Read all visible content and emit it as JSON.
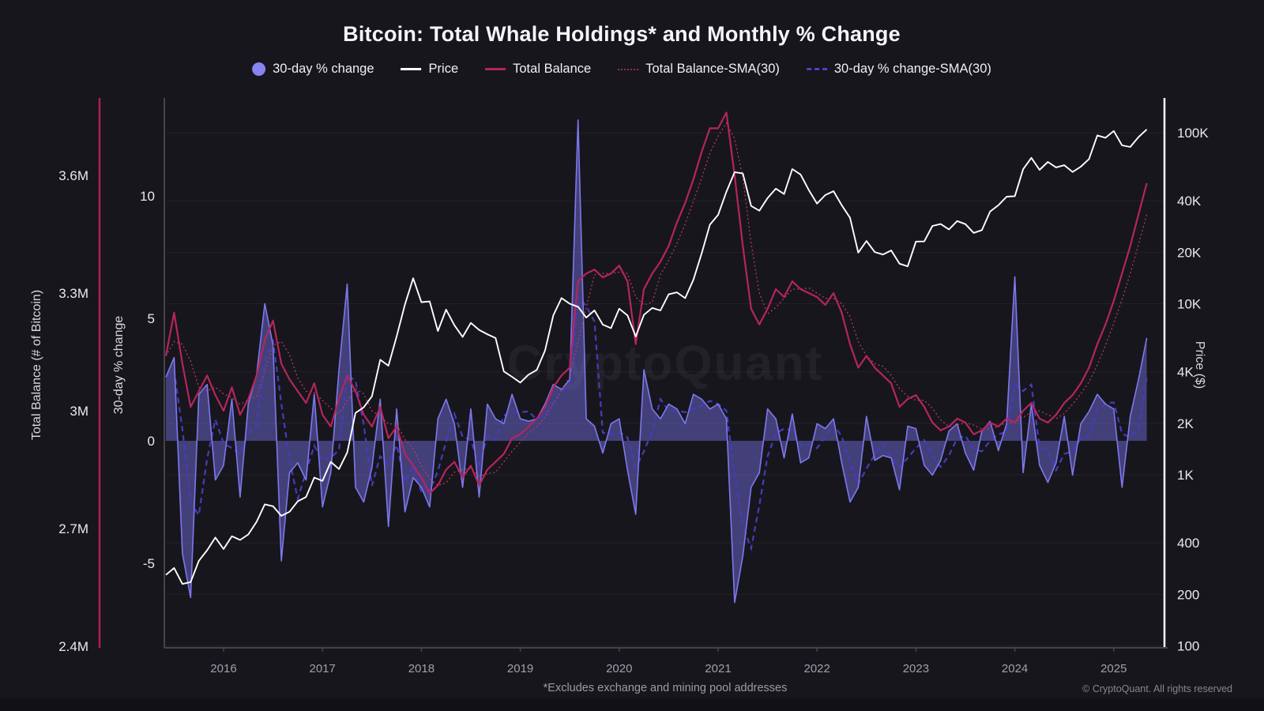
{
  "header": {
    "title": "Bitcoin: Total Whale Holdings* and Monthly % Change"
  },
  "legend": {
    "items": [
      {
        "label": "30-day % change",
        "swatch": "dot",
        "color": "#8783f0"
      },
      {
        "label": "Price",
        "swatch": "line",
        "color": "#ffffff"
      },
      {
        "label": "Total Balance",
        "swatch": "line",
        "color": "#b5255d"
      },
      {
        "label": "Total Balance-SMA(30)",
        "swatch": "dotted",
        "color": "#8e3658"
      },
      {
        "label": "30-day % change-SMA(30)",
        "swatch": "dashed",
        "color": "#4c43c8"
      }
    ]
  },
  "footer": {
    "footnote": "*Excludes exchange and mining pool addresses",
    "copyright": "© CryptoQuant. All rights reserved"
  },
  "watermark_text": "CryptoQuant",
  "chart_data": {
    "type": "line",
    "background": "#17161c",
    "grid": "horizontal, at price-axis ticks, color rgba(255,255,255,0.055)",
    "x_axis": {
      "start": 2015.417,
      "end": 2025.417,
      "step_years": 0.0833333,
      "year_ticks": [
        "2016",
        "2017",
        "2018",
        "2019",
        "2020",
        "2021",
        "2022",
        "2023",
        "2024",
        "2025"
      ]
    },
    "left_axis_balance": {
      "label": "Total Balance (# of Bitcoin)",
      "unit": "M BTC",
      "range_m": [
        2.4,
        3.8
      ],
      "ticks": [
        {
          "label": "3.6M",
          "value": 3.6
        },
        {
          "label": "3.3M",
          "value": 3.3
        },
        {
          "label": "3M",
          "value": 3.0
        },
        {
          "label": "2.7M",
          "value": 2.7
        },
        {
          "label": "2.4M",
          "value": 2.4
        }
      ],
      "axis_color": "#b01e56"
    },
    "left_axis_pct": {
      "label": "30-day % change",
      "range": [
        -9.5,
        14
      ],
      "ticks": [
        {
          "label": "10",
          "value": 10
        },
        {
          "label": "5",
          "value": 5
        },
        {
          "label": "0",
          "value": 0
        },
        {
          "label": "-5",
          "value": -5
        }
      ],
      "axis_color": "#45444c"
    },
    "right_axis_price": {
      "label": "Price ($)",
      "scale": "log10",
      "range": [
        100,
        130000
      ],
      "ticks": [
        {
          "label": "100K",
          "value": 100000
        },
        {
          "label": "40K",
          "value": 40000
        },
        {
          "label": "20K",
          "value": 20000
        },
        {
          "label": "10K",
          "value": 10000
        },
        {
          "label": "4K",
          "value": 4000
        },
        {
          "label": "2K",
          "value": 2000
        },
        {
          "label": "1K",
          "value": 1000
        },
        {
          "label": "400",
          "value": 400
        },
        {
          "label": "200",
          "value": 200
        },
        {
          "label": "100",
          "value": 100
        }
      ],
      "axis_color": "#ffffff"
    },
    "series": [
      {
        "name": "Price",
        "axis": "price",
        "style": {
          "color": "#ffffff",
          "width": 1.9
        },
        "values": [
          260,
          285,
          230,
          236,
          314,
          362,
          430,
          368,
          437,
          416,
          448,
          531,
          672,
          655,
          575,
          608,
          700,
          742,
          963,
          921,
          1190,
          1080,
          1350,
          2300,
          2480,
          2875,
          4703,
          4340,
          6450,
          9900,
          14100,
          10220,
          10310,
          6930,
          9240,
          7490,
          6400,
          7730,
          7030,
          6630,
          6300,
          4020,
          3740,
          3460,
          3850,
          4100,
          5320,
          8560,
          10800,
          10000,
          9600,
          8300,
          9150,
          7550,
          7200,
          9350,
          8550,
          6440,
          8620,
          9450,
          9140,
          11350,
          11650,
          10780,
          13800,
          19700,
          29000,
          33100,
          45200,
          58800,
          57750,
          37300,
          35000,
          41500,
          47100,
          43800,
          61300,
          57000,
          46200,
          38500,
          43200,
          45500,
          37650,
          31800,
          19900,
          23300,
          20050,
          19400,
          20500,
          17150,
          16550,
          23100,
          23150,
          28500,
          29250,
          27200,
          30450,
          29200,
          25950,
          26950,
          34650,
          37700,
          42250,
          42550,
          61200,
          71300,
          60650,
          67500,
          62700,
          64600,
          58950,
          63300,
          70200,
          96400,
          93400,
          102400,
          84350,
          82550,
          94200,
          104600
        ]
      },
      {
        "name": "Total Balance",
        "axis": "balance",
        "style": {
          "color": "#b5255d",
          "width": 2.2
        },
        "values_millions": [
          3.14,
          3.25,
          3.12,
          3.01,
          3.05,
          3.09,
          3.04,
          3.0,
          3.06,
          2.99,
          3.03,
          3.09,
          3.18,
          3.23,
          3.12,
          3.08,
          3.05,
          3.02,
          3.07,
          2.99,
          2.96,
          3.03,
          3.09,
          3.05,
          2.99,
          2.96,
          3.01,
          2.93,
          2.96,
          2.89,
          2.86,
          2.83,
          2.79,
          2.81,
          2.85,
          2.87,
          2.83,
          2.86,
          2.81,
          2.85,
          2.87,
          2.89,
          2.93,
          2.94,
          2.96,
          2.98,
          3.01,
          3.06,
          3.09,
          3.11,
          3.33,
          3.35,
          3.36,
          3.34,
          3.35,
          3.37,
          3.33,
          3.17,
          3.31,
          3.35,
          3.38,
          3.42,
          3.48,
          3.53,
          3.59,
          3.66,
          3.72,
          3.72,
          3.76,
          3.6,
          3.42,
          3.26,
          3.22,
          3.26,
          3.31,
          3.29,
          3.33,
          3.31,
          3.3,
          3.29,
          3.27,
          3.3,
          3.25,
          3.17,
          3.11,
          3.14,
          3.11,
          3.09,
          3.07,
          3.01,
          3.03,
          3.04,
          3.01,
          2.97,
          2.95,
          2.96,
          2.98,
          2.97,
          2.94,
          2.95,
          2.97,
          2.96,
          2.98,
          2.97,
          3.0,
          3.02,
          2.98,
          2.97,
          2.99,
          3.02,
          3.04,
          3.07,
          3.11,
          3.17,
          3.22,
          3.28,
          3.35,
          3.42,
          3.5,
          3.58
        ]
      },
      {
        "name": "30-day % change",
        "axis": "pct",
        "style": {
          "color": "#7d78ee",
          "width": 1.6,
          "fill": "rgba(123,116,234,0.45)",
          "area_baseline": 0
        },
        "values": [
          2.6,
          3.4,
          -4.6,
          -6.4,
          1.9,
          2.3,
          -1.6,
          -1.0,
          1.7,
          -2.3,
          1.5,
          2.7,
          5.6,
          3.9,
          -4.9,
          -1.3,
          -0.9,
          -1.6,
          1.9,
          -2.7,
          -1.3,
          2.9,
          6.4,
          -1.9,
          -2.5,
          -1.1,
          1.7,
          -3.5,
          1.3,
          -2.9,
          -1.5,
          -1.9,
          -2.7,
          0.9,
          1.7,
          0.7,
          -1.9,
          1.3,
          -2.3,
          1.5,
          0.9,
          0.7,
          1.9,
          0.9,
          0.8,
          0.9,
          1.5,
          2.3,
          2.1,
          2.5,
          13.1,
          0.9,
          0.6,
          -0.5,
          0.7,
          0.9,
          -1.2,
          -3.0,
          2.9,
          1.3,
          0.9,
          1.5,
          1.3,
          0.7,
          1.9,
          1.7,
          1.3,
          1.5,
          0.9,
          -6.6,
          -4.7,
          -1.9,
          -1.3,
          1.3,
          0.9,
          -0.7,
          1.1,
          -0.9,
          -0.7,
          0.7,
          0.5,
          0.9,
          -0.9,
          -2.5,
          -1.9,
          1.0,
          -0.8,
          -0.6,
          -0.7,
          -2.0,
          0.6,
          0.5,
          -1.0,
          -1.4,
          -0.8,
          0.4,
          0.7,
          -0.5,
          -1.2,
          0.4,
          0.8,
          -0.4,
          0.7,
          6.7,
          -1.3,
          1.5,
          -1.0,
          -1.7,
          -0.9,
          1.0,
          -1.4,
          0.7,
          1.2,
          1.9,
          1.5,
          1.3,
          -1.9,
          1.0,
          2.5,
          4.2
        ]
      },
      {
        "name": "Total Balance-SMA(30)",
        "axis": "balance",
        "derived": "3-point moving average of Total Balance",
        "style": {
          "color": "#b23a66",
          "width": 1.3,
          "dash": "2 3"
        }
      },
      {
        "name": "30-day % change-SMA(30)",
        "axis": "pct",
        "derived": "3-point moving average of 30-day % change",
        "style": {
          "color": "#453bbd",
          "width": 2.2,
          "dash": "7 5"
        }
      }
    ]
  }
}
